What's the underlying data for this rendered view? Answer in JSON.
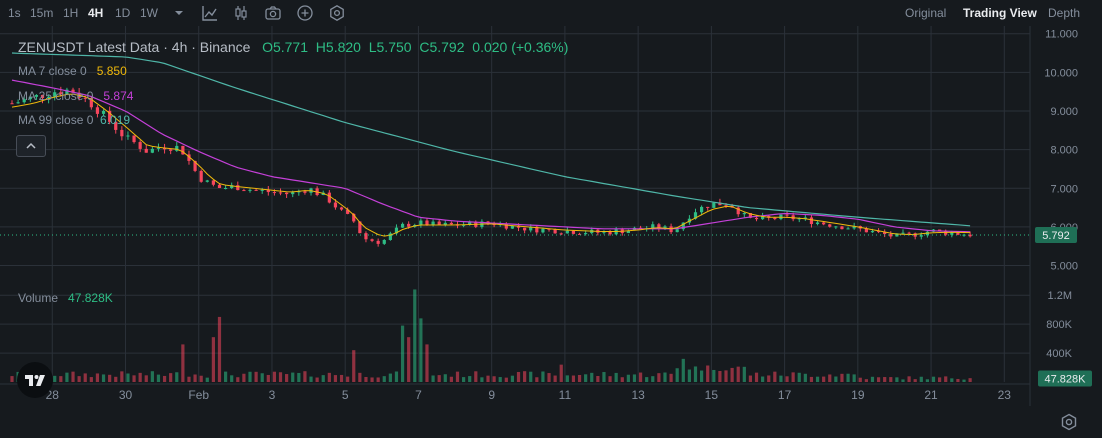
{
  "toolbar": {
    "timeframes": [
      "1s",
      "15m",
      "1H",
      "4H",
      "1D",
      "1W"
    ],
    "active_timeframe": "4H",
    "views": [
      "Original",
      "Trading View",
      "Depth"
    ],
    "active_view": "Trading View",
    "icons": [
      "chevron-down-icon",
      "indicator-icon",
      "candle-type-icon",
      "camera-icon",
      "plus-circle-icon",
      "settings-hex-icon"
    ]
  },
  "legend": {
    "title": "ZENUSDT Latest Data · 4h · Binance",
    "open": "O5.771",
    "high": "H5.820",
    "low": "L5.750",
    "close": "C5.792",
    "change": "0.020 (+0.36%)",
    "ma7_label": "MA 7 close 0",
    "ma7_value": "5.850",
    "ma25_label": "MA 25 close 0",
    "ma25_value": "5.874",
    "ma99_label": "MA 99 close 0",
    "ma99_value": "6.019",
    "volume_label": "Volume",
    "volume_value": "47.828K"
  },
  "colors": {
    "up": "#2ebd85",
    "down": "#f6465d",
    "ma7": "#f0b90b",
    "ma25": "#c440d8",
    "ma99": "#4fb6a8",
    "background": "#161a1e",
    "grid": "#2b3139"
  },
  "chart_data": {
    "type": "candlestick",
    "symbol": "ZENUSDT",
    "interval": "4h",
    "exchange": "Binance",
    "x_ticks": [
      "28",
      "30",
      "Feb",
      "3",
      "5",
      "7",
      "9",
      "11",
      "13",
      "15",
      "17",
      "19",
      "21",
      "23"
    ],
    "y_ticks": [
      "11.000",
      "10.000",
      "9.000",
      "8.000",
      "7.000",
      "6.000",
      "5.000"
    ],
    "y_range": [
      4.6,
      11.2
    ],
    "volume_ticks": [
      "1.2M",
      "800K",
      "400K"
    ],
    "volume_range": [
      0,
      1300000
    ],
    "last_price": "5.792",
    "last_volume": "47.828K",
    "close_path_days": [
      26.9,
      27.5,
      28,
      28.5,
      29,
      29.5,
      30,
      30.3,
      30.6,
      31,
      31.5,
      32,
      32.3,
      32.6,
      33,
      33.5,
      34,
      34.5,
      35,
      35.5,
      36,
      36.2,
      36.5,
      37,
      37.3,
      37.6,
      38,
      38.5,
      39,
      40,
      41,
      42,
      43,
      43.5,
      44,
      44.5,
      45,
      45.5,
      46,
      46.5,
      47,
      47.5,
      48,
      48.5,
      49,
      50,
      51,
      51.5,
      52,
      52.5,
      53.2
    ],
    "close_path_prices": [
      9.2,
      9.35,
      9.5,
      9.55,
      9.25,
      8.8,
      8.3,
      8.15,
      7.95,
      8.1,
      8.05,
      7.3,
      7.1,
      7.0,
      7.05,
      6.95,
      6.9,
      6.85,
      7.0,
      6.75,
      6.3,
      6.2,
      5.7,
      5.6,
      5.85,
      6.05,
      6.1,
      6.05,
      6.05,
      6.1,
      5.95,
      5.9,
      5.85,
      5.9,
      5.95,
      6.0,
      5.9,
      6.4,
      6.6,
      6.6,
      6.2,
      6.2,
      6.25,
      6.2,
      6.1,
      5.95,
      5.75,
      5.8,
      5.9,
      5.85,
      5.79
    ],
    "ma7_path_prices": [
      9.1,
      9.2,
      9.35,
      9.45,
      9.35,
      9.0,
      8.6,
      8.35,
      8.1,
      8.05,
      8.0,
      7.6,
      7.3,
      7.1,
      7.05,
      7.0,
      6.95,
      6.9,
      6.95,
      6.85,
      6.5,
      6.35,
      6.0,
      5.75,
      5.8,
      5.95,
      6.05,
      6.05,
      6.05,
      6.08,
      6.0,
      5.92,
      5.88,
      5.88,
      5.92,
      5.98,
      5.95,
      6.2,
      6.45,
      6.55,
      6.35,
      6.25,
      6.25,
      6.22,
      6.15,
      6.0,
      5.82,
      5.8,
      5.85,
      5.86,
      5.85
    ],
    "ma25_path_days": [
      26.9,
      28,
      29,
      30,
      31,
      32,
      33,
      34,
      35,
      36,
      37,
      38,
      39,
      41,
      43,
      45,
      46,
      47,
      48,
      49,
      50,
      51,
      52,
      53.2
    ],
    "ma25_path_prices": [
      9.8,
      9.6,
      9.4,
      9.0,
      8.4,
      7.95,
      7.55,
      7.3,
      7.15,
      7.0,
      6.6,
      6.25,
      6.15,
      6.05,
      5.95,
      5.95,
      6.1,
      6.25,
      6.35,
      6.3,
      6.2,
      6.0,
      5.9,
      5.87
    ],
    "ma99_path_days": [
      26.9,
      30,
      31,
      33,
      36,
      39,
      42,
      45,
      47,
      50,
      53.2
    ],
    "ma99_path_prices": [
      10.5,
      10.4,
      10.25,
      9.6,
      8.7,
      7.95,
      7.3,
      6.8,
      6.5,
      6.25,
      6.02
    ]
  }
}
